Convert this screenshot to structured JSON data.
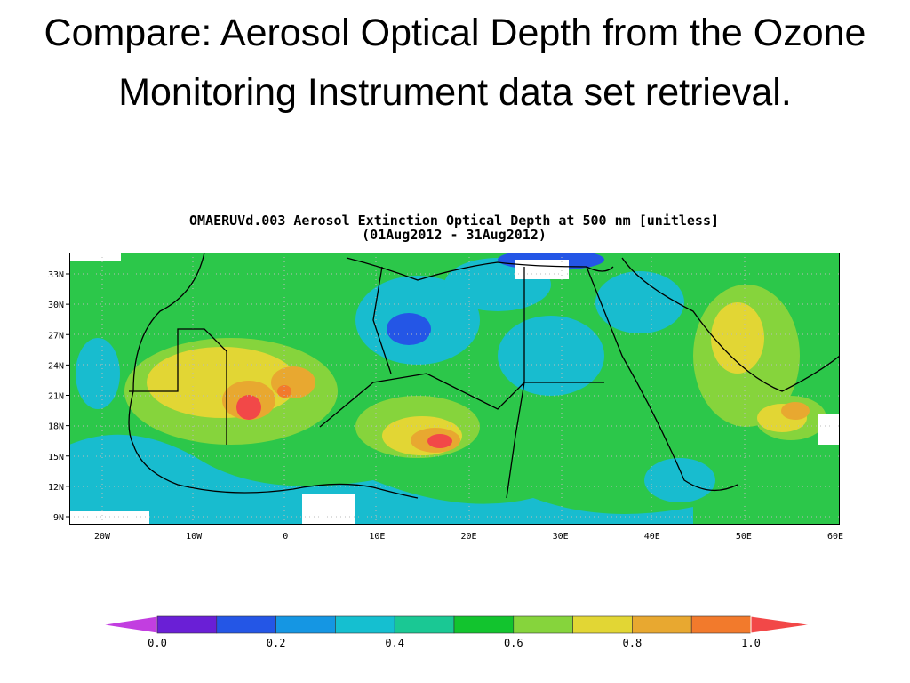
{
  "slide_title": "Compare: Aerosol Optical Depth from the Ozone Monitoring Instrument data set retrieval.",
  "map": {
    "title": "OMAERUVd.003 Aerosol Extinction Optical Depth at 500 nm [unitless]",
    "subtitle": "(01Aug2012 - 31Aug2012)",
    "lat_labels": [
      "33N",
      "30N",
      "27N",
      "24N",
      "21N",
      "18N",
      "15N",
      "12N",
      "9N"
    ],
    "lon_labels": [
      "20W",
      "10W",
      "0",
      "10E",
      "20E",
      "30E",
      "40E",
      "50E",
      "60E"
    ]
  },
  "colorbar": {
    "colors": [
      "#c23ee0",
      "#6a1fd6",
      "#2456e6",
      "#1596e3",
      "#15bfd0",
      "#1ac894",
      "#12c42e",
      "#86d43c",
      "#e2d634",
      "#e8a830",
      "#f27a2c",
      "#f24848"
    ],
    "labels": [
      "0.0",
      "0.2",
      "0.4",
      "0.6",
      "0.8",
      "1.0"
    ]
  }
}
